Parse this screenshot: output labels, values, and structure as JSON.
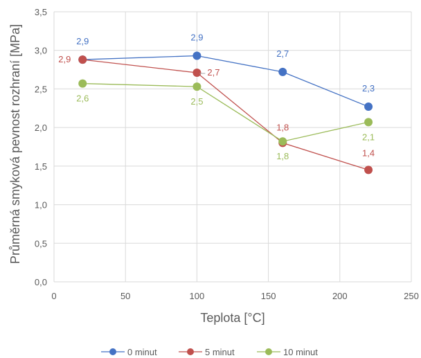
{
  "chart_data": {
    "type": "line",
    "xlabel": "Teplota [°C]",
    "ylabel": "Průměrná smyková pevnost rozhraní [MPa]",
    "xlim": [
      0,
      250
    ],
    "ylim": [
      0,
      3.5
    ],
    "xticks": [
      0,
      50,
      100,
      150,
      200,
      250
    ],
    "yticks": [
      0,
      0.5,
      1.0,
      1.5,
      2.0,
      2.5,
      3.0,
      3.5
    ],
    "xtick_labels": [
      "0",
      "50",
      "100",
      "150",
      "200",
      "250"
    ],
    "ytick_labels": [
      "0,0",
      "0,5",
      "1,0",
      "1,5",
      "2,0",
      "2,5",
      "3,0",
      "3,5"
    ],
    "grid": "vertical and horizontal",
    "legend_position": "bottom",
    "series": [
      {
        "name": "0 minut",
        "color": "#4472C4",
        "x": [
          20,
          100,
          160,
          220
        ],
        "y": [
          2.88,
          2.93,
          2.72,
          2.27
        ],
        "labels": [
          "2,9",
          "2,9",
          "2,7",
          "2,3"
        ]
      },
      {
        "name": "5 minut",
        "color": "#C0504D",
        "x": [
          20,
          100,
          160,
          220
        ],
        "y": [
          2.88,
          2.71,
          1.8,
          1.45
        ],
        "labels": [
          "2,9",
          "2,7",
          "1,8",
          "1,4"
        ]
      },
      {
        "name": "10 minut",
        "color": "#9BBB59",
        "x": [
          20,
          100,
          160,
          220
        ],
        "y": [
          2.57,
          2.53,
          1.82,
          2.07
        ],
        "labels": [
          "2,6",
          "2,5",
          "1,8",
          "2,1"
        ]
      }
    ]
  }
}
